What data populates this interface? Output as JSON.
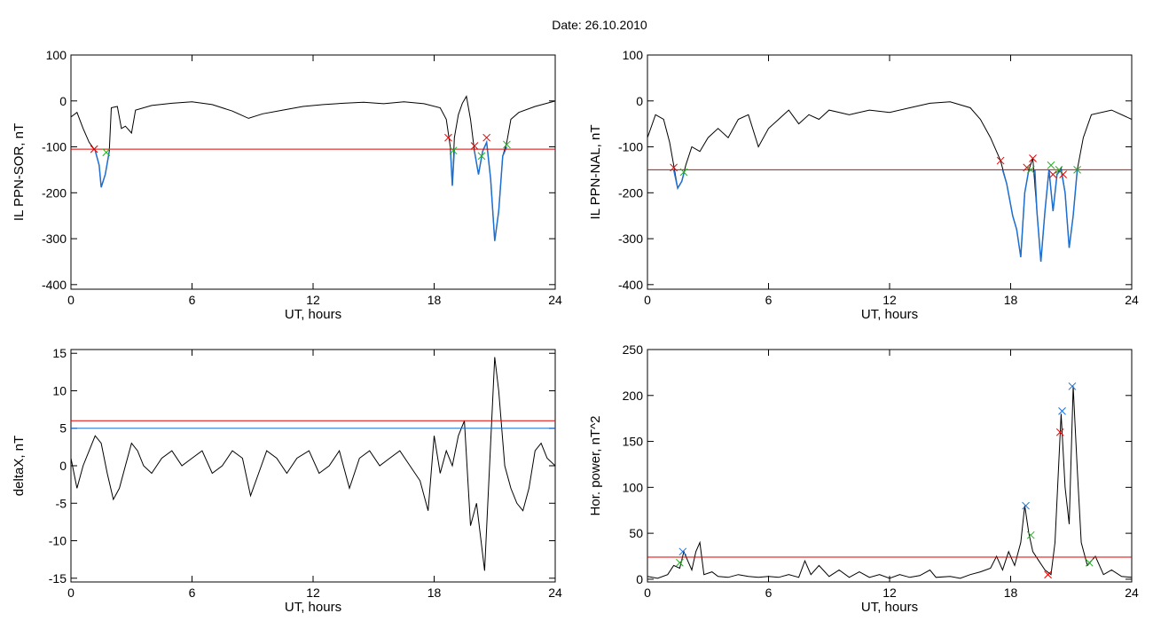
{
  "page_title": "Date:  26.10.2010",
  "chart_data": [
    {
      "type": "line",
      "title": "",
      "xlabel": "UT, hours",
      "ylabel": "IL PPN-SOR, nT",
      "xlim": [
        0,
        24
      ],
      "ylim": [
        -410,
        100
      ],
      "xticks": [
        0,
        6,
        12,
        18,
        24
      ],
      "yticks": [
        100,
        0,
        -100,
        -200,
        -300,
        -400
      ],
      "threshold": -105,
      "series_black": [
        [
          0,
          -35
        ],
        [
          0.3,
          -25
        ],
        [
          0.6,
          -60
        ],
        [
          0.9,
          -90
        ],
        [
          1.2,
          -108
        ],
        [
          1.4,
          -140
        ],
        [
          1.5,
          -188
        ],
        [
          1.7,
          -160
        ],
        [
          1.9,
          -110
        ],
        [
          2.0,
          -15
        ],
        [
          2.3,
          -12
        ],
        [
          2.5,
          -60
        ],
        [
          2.7,
          -55
        ],
        [
          3.0,
          -70
        ],
        [
          3.2,
          -20
        ],
        [
          4.0,
          -10
        ],
        [
          5.0,
          -5
        ],
        [
          6.0,
          -2
        ],
        [
          7.0,
          -8
        ],
        [
          8.0,
          -22
        ],
        [
          8.8,
          -38
        ],
        [
          9.5,
          -28
        ],
        [
          10.5,
          -20
        ],
        [
          11.5,
          -12
        ],
        [
          12.5,
          -8
        ],
        [
          13.5,
          -5
        ],
        [
          14.5,
          -3
        ],
        [
          15.5,
          -6
        ],
        [
          16.5,
          -2
        ],
        [
          17.5,
          -6
        ],
        [
          18.3,
          -15
        ],
        [
          18.6,
          -40
        ],
        [
          18.8,
          -100
        ],
        [
          18.9,
          -185
        ],
        [
          19.0,
          -80
        ],
        [
          19.2,
          -30
        ],
        [
          19.4,
          -5
        ],
        [
          19.6,
          10
        ],
        [
          19.8,
          -40
        ],
        [
          20.0,
          -110
        ],
        [
          20.2,
          -160
        ],
        [
          20.4,
          -110
        ],
        [
          20.6,
          -90
        ],
        [
          20.8,
          -170
        ],
        [
          21.0,
          -305
        ],
        [
          21.2,
          -240
        ],
        [
          21.4,
          -120
        ],
        [
          21.6,
          -90
        ],
        [
          21.8,
          -40
        ],
        [
          22.2,
          -25
        ],
        [
          23.0,
          -12
        ],
        [
          24.0,
          0
        ]
      ],
      "series_blue_segments": [
        [
          [
            1.2,
            -108
          ],
          [
            1.4,
            -140
          ],
          [
            1.5,
            -188
          ],
          [
            1.7,
            -160
          ],
          [
            1.9,
            -110
          ]
        ],
        [
          [
            18.8,
            -100
          ],
          [
            18.9,
            -185
          ],
          [
            19.0,
            -105
          ]
        ],
        [
          [
            20.0,
            -110
          ],
          [
            20.2,
            -160
          ],
          [
            20.4,
            -110
          ],
          [
            20.6,
            -90
          ],
          [
            20.8,
            -170
          ],
          [
            21.0,
            -305
          ],
          [
            21.2,
            -240
          ],
          [
            21.4,
            -120
          ],
          [
            21.6,
            -100
          ]
        ]
      ],
      "red_markers": [
        [
          1.15,
          -105
        ],
        [
          18.7,
          -80
        ],
        [
          20.0,
          -98
        ],
        [
          20.6,
          -80
        ]
      ],
      "green_markers": [
        [
          1.75,
          -112
        ],
        [
          18.95,
          -108
        ],
        [
          20.35,
          -120
        ],
        [
          21.6,
          -95
        ]
      ],
      "blue_markers": [],
      "hlines": [
        {
          "y": -105,
          "color": "#e00000"
        }
      ]
    },
    {
      "type": "line",
      "title": "",
      "xlabel": "UT, hours",
      "ylabel": "IL PPN-NAL, nT",
      "xlim": [
        0,
        24
      ],
      "ylim": [
        -410,
        100
      ],
      "xticks": [
        0,
        6,
        12,
        18,
        24
      ],
      "yticks": [
        100,
        0,
        -100,
        -200,
        -300,
        -400
      ],
      "threshold": -150,
      "series_black": [
        [
          0,
          -80
        ],
        [
          0.4,
          -30
        ],
        [
          0.8,
          -40
        ],
        [
          1.1,
          -90
        ],
        [
          1.3,
          -140
        ],
        [
          1.5,
          -190
        ],
        [
          1.7,
          -175
        ],
        [
          1.9,
          -140
        ],
        [
          2.2,
          -100
        ],
        [
          2.6,
          -110
        ],
        [
          3.0,
          -80
        ],
        [
          3.5,
          -60
        ],
        [
          4.0,
          -80
        ],
        [
          4.5,
          -40
        ],
        [
          5.0,
          -30
        ],
        [
          5.5,
          -100
        ],
        [
          6.0,
          -60
        ],
        [
          6.5,
          -40
        ],
        [
          7.0,
          -20
        ],
        [
          7.5,
          -50
        ],
        [
          8.0,
          -30
        ],
        [
          8.5,
          -40
        ],
        [
          9.0,
          -20
        ],
        [
          10.0,
          -30
        ],
        [
          11.0,
          -20
        ],
        [
          12.0,
          -25
        ],
        [
          13.0,
          -15
        ],
        [
          14.0,
          -5
        ],
        [
          15.0,
          -2
        ],
        [
          16.0,
          -15
        ],
        [
          16.5,
          -40
        ],
        [
          17.0,
          -80
        ],
        [
          17.5,
          -130
        ],
        [
          17.8,
          -180
        ],
        [
          18.1,
          -250
        ],
        [
          18.3,
          -280
        ],
        [
          18.5,
          -340
        ],
        [
          18.7,
          -200
        ],
        [
          18.9,
          -150
        ],
        [
          19.1,
          -125
        ],
        [
          19.3,
          -240
        ],
        [
          19.5,
          -350
        ],
        [
          19.7,
          -240
        ],
        [
          19.9,
          -150
        ],
        [
          20.1,
          -240
        ],
        [
          20.3,
          -160
        ],
        [
          20.5,
          -145
        ],
        [
          20.7,
          -200
        ],
        [
          20.9,
          -320
        ],
        [
          21.1,
          -250
        ],
        [
          21.3,
          -150
        ],
        [
          21.6,
          -80
        ],
        [
          22.0,
          -30
        ],
        [
          23.0,
          -20
        ],
        [
          24.0,
          -40
        ]
      ],
      "series_blue_segments": [
        [
          [
            1.3,
            -150
          ],
          [
            1.5,
            -190
          ],
          [
            1.7,
            -175
          ],
          [
            1.85,
            -150
          ]
        ],
        [
          [
            17.6,
            -150
          ],
          [
            17.8,
            -180
          ],
          [
            18.1,
            -250
          ],
          [
            18.3,
            -280
          ],
          [
            18.5,
            -340
          ],
          [
            18.7,
            -200
          ],
          [
            18.9,
            -150
          ]
        ],
        [
          [
            19.2,
            -150
          ],
          [
            19.3,
            -240
          ],
          [
            19.5,
            -350
          ],
          [
            19.7,
            -240
          ],
          [
            19.9,
            -150
          ],
          [
            20.1,
            -240
          ],
          [
            20.3,
            -160
          ],
          [
            20.5,
            -150
          ],
          [
            20.7,
            -200
          ],
          [
            20.9,
            -320
          ],
          [
            21.1,
            -250
          ],
          [
            21.3,
            -150
          ]
        ]
      ],
      "red_markers": [
        [
          1.3,
          -145
        ],
        [
          17.5,
          -130
        ],
        [
          18.8,
          -145
        ],
        [
          19.1,
          -125
        ],
        [
          20.1,
          -160
        ],
        [
          20.6,
          -160
        ]
      ],
      "green_markers": [
        [
          1.8,
          -155
        ],
        [
          19.0,
          -150
        ],
        [
          20.0,
          -140
        ],
        [
          20.4,
          -150
        ],
        [
          21.3,
          -150
        ]
      ],
      "blue_markers": [],
      "hlines": [
        {
          "y": -150,
          "color": "#e00000"
        }
      ]
    },
    {
      "type": "line",
      "title": "",
      "xlabel": "UT, hours",
      "ylabel": "deltaX, nT",
      "xlim": [
        0,
        24
      ],
      "ylim": [
        -15.5,
        15.5
      ],
      "xticks": [
        0,
        6,
        12,
        18,
        24
      ],
      "yticks": [
        15,
        10,
        5,
        0,
        -5,
        -10,
        -15
      ],
      "threshold": 6,
      "series_black": [
        [
          0,
          1
        ],
        [
          0.3,
          -3
        ],
        [
          0.6,
          0
        ],
        [
          0.9,
          2
        ],
        [
          1.2,
          4
        ],
        [
          1.5,
          3
        ],
        [
          1.8,
          -1
        ],
        [
          2.1,
          -4.5
        ],
        [
          2.4,
          -3
        ],
        [
          2.7,
          0
        ],
        [
          3.0,
          3
        ],
        [
          3.3,
          2
        ],
        [
          3.6,
          0
        ],
        [
          4.0,
          -1
        ],
        [
          4.5,
          1
        ],
        [
          5.0,
          2
        ],
        [
          5.5,
          0
        ],
        [
          6.0,
          1
        ],
        [
          6.5,
          2
        ],
        [
          7.0,
          -1
        ],
        [
          7.5,
          0
        ],
        [
          8.0,
          2
        ],
        [
          8.5,
          1
        ],
        [
          8.9,
          -4
        ],
        [
          9.3,
          -1
        ],
        [
          9.7,
          2
        ],
        [
          10.2,
          1
        ],
        [
          10.7,
          -1
        ],
        [
          11.2,
          1
        ],
        [
          11.8,
          2
        ],
        [
          12.3,
          -1
        ],
        [
          12.8,
          0
        ],
        [
          13.3,
          2
        ],
        [
          13.8,
          -3
        ],
        [
          14.3,
          1
        ],
        [
          14.8,
          2
        ],
        [
          15.3,
          0
        ],
        [
          15.8,
          1
        ],
        [
          16.3,
          2
        ],
        [
          16.8,
          0
        ],
        [
          17.3,
          -2
        ],
        [
          17.7,
          -6
        ],
        [
          18.0,
          4
        ],
        [
          18.3,
          -1
        ],
        [
          18.6,
          2
        ],
        [
          18.9,
          0
        ],
        [
          19.2,
          4
        ],
        [
          19.5,
          6
        ],
        [
          19.8,
          -8
        ],
        [
          20.1,
          -5
        ],
        [
          20.5,
          -14
        ],
        [
          20.8,
          3
        ],
        [
          21.0,
          14.5
        ],
        [
          21.2,
          10
        ],
        [
          21.5,
          0
        ],
        [
          21.8,
          -3
        ],
        [
          22.1,
          -5
        ],
        [
          22.4,
          -6
        ],
        [
          22.7,
          -3
        ],
        [
          23.0,
          2
        ],
        [
          23.3,
          3
        ],
        [
          23.6,
          1
        ],
        [
          24.0,
          0
        ]
      ],
      "series_blue_segments": [],
      "red_markers": [],
      "green_markers": [],
      "blue_markers": [],
      "hlines": [
        {
          "y": 6,
          "color": "#e00000"
        },
        {
          "y": 5,
          "color": "#1f6fd1"
        }
      ]
    },
    {
      "type": "line",
      "title": "",
      "xlabel": "UT, hours",
      "ylabel": "Hor. power, nT^2",
      "xlim": [
        0,
        24
      ],
      "ylim": [
        -3,
        250
      ],
      "xticks": [
        0,
        6,
        12,
        18,
        24
      ],
      "yticks": [
        250,
        200,
        150,
        100,
        50,
        0
      ],
      "threshold": 24,
      "series_black": [
        [
          0,
          3
        ],
        [
          0.5,
          1
        ],
        [
          1.0,
          5
        ],
        [
          1.3,
          15
        ],
        [
          1.6,
          12
        ],
        [
          1.8,
          30
        ],
        [
          2.0,
          20
        ],
        [
          2.2,
          10
        ],
        [
          2.4,
          30
        ],
        [
          2.6,
          40
        ],
        [
          2.8,
          5
        ],
        [
          3.2,
          8
        ],
        [
          3.5,
          3
        ],
        [
          4.0,
          2
        ],
        [
          4.5,
          5
        ],
        [
          5.0,
          3
        ],
        [
          5.5,
          2
        ],
        [
          6.0,
          3
        ],
        [
          6.5,
          2
        ],
        [
          7.0,
          5
        ],
        [
          7.5,
          2
        ],
        [
          7.8,
          20
        ],
        [
          8.1,
          5
        ],
        [
          8.5,
          15
        ],
        [
          9.0,
          3
        ],
        [
          9.5,
          10
        ],
        [
          10.0,
          2
        ],
        [
          10.5,
          8
        ],
        [
          11.0,
          2
        ],
        [
          11.5,
          5
        ],
        [
          12.0,
          1
        ],
        [
          12.5,
          5
        ],
        [
          13.0,
          2
        ],
        [
          13.5,
          4
        ],
        [
          14.0,
          10
        ],
        [
          14.3,
          2
        ],
        [
          15.0,
          3
        ],
        [
          15.5,
          1
        ],
        [
          16.0,
          5
        ],
        [
          16.5,
          8
        ],
        [
          17.0,
          12
        ],
        [
          17.3,
          25
        ],
        [
          17.6,
          10
        ],
        [
          17.9,
          30
        ],
        [
          18.2,
          15
        ],
        [
          18.5,
          40
        ],
        [
          18.7,
          80
        ],
        [
          18.9,
          50
        ],
        [
          19.1,
          30
        ],
        [
          19.4,
          20
        ],
        [
          19.7,
          10
        ],
        [
          20.0,
          5
        ],
        [
          20.2,
          40
        ],
        [
          20.5,
          180
        ],
        [
          20.7,
          100
        ],
        [
          20.9,
          60
        ],
        [
          21.1,
          210
        ],
        [
          21.3,
          120
        ],
        [
          21.5,
          40
        ],
        [
          21.8,
          15
        ],
        [
          22.2,
          25
        ],
        [
          22.6,
          5
        ],
        [
          23.0,
          10
        ],
        [
          23.5,
          3
        ],
        [
          24.0,
          2
        ]
      ],
      "series_blue_segments": [],
      "red_markers": [
        [
          20.45,
          160
        ],
        [
          19.85,
          5
        ]
      ],
      "green_markers": [
        [
          1.6,
          18
        ],
        [
          19.0,
          48
        ],
        [
          21.9,
          18
        ]
      ],
      "blue_markers": [
        [
          1.75,
          30
        ],
        [
          18.75,
          80
        ],
        [
          20.55,
          183
        ],
        [
          21.05,
          210
        ]
      ],
      "hlines": [
        {
          "y": 24,
          "color": "#e00000"
        }
      ]
    }
  ]
}
